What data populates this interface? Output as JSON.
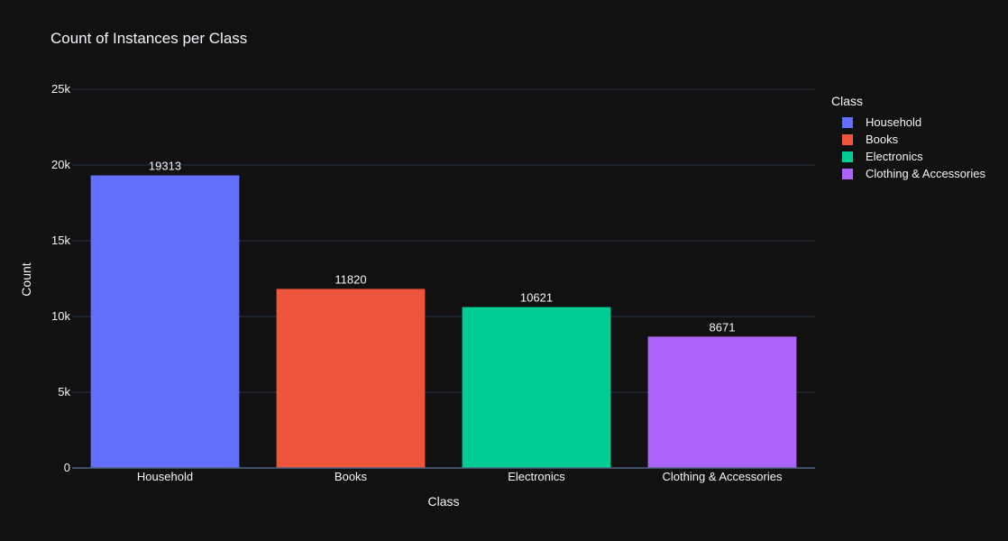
{
  "chart_data": {
    "type": "bar",
    "title": "Count of Instances per Class",
    "xlabel": "Class",
    "ylabel": "Count",
    "categories": [
      "Household",
      "Books",
      "Electronics",
      "Clothing & Accessories"
    ],
    "values": [
      19313,
      11820,
      10621,
      8671
    ],
    "data_labels": [
      "19313",
      "11820",
      "10621",
      "8671"
    ],
    "colors": [
      "#636efa",
      "#ef553b",
      "#00cc96",
      "#ab63fa"
    ],
    "ylim": [
      0,
      25000
    ],
    "y_ticks": [
      0,
      5000,
      10000,
      15000,
      20000,
      25000
    ],
    "y_tick_labels": [
      "0",
      "5k",
      "10k",
      "15k",
      "20k",
      "25k"
    ],
    "grid": true,
    "legend": {
      "title": "Class",
      "position": "top-right",
      "entries": [
        "Household",
        "Books",
        "Electronics",
        "Clothing & Accessories"
      ]
    },
    "background": "#111111",
    "grid_color": "#283442"
  }
}
